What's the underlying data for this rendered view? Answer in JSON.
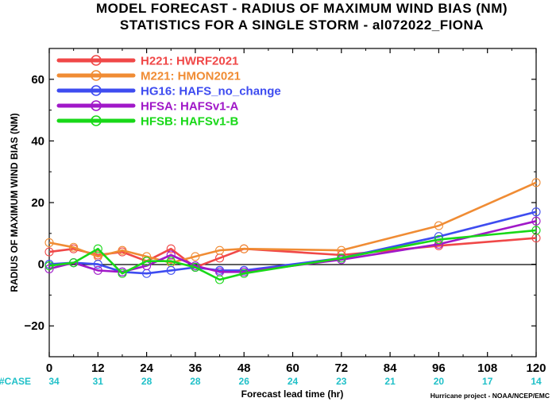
{
  "chart_data": {
    "type": "line",
    "title": "MODEL FORECAST - RADIUS OF MAXIMUM WIND BIAS (NM)",
    "subtitle": "STATISTICS FOR A SINGLE STORM - al072022_FIONA",
    "xlabel": "Forecast lead time (hr)",
    "ylabel": "RADIUS OF MAXIMUM WIND BIAS (NM)",
    "xlim": [
      0,
      120
    ],
    "ylim": [
      -30,
      70
    ],
    "x_ticks": [
      "0",
      "12",
      "24",
      "36",
      "48",
      "60",
      "72",
      "84",
      "96",
      "108",
      "120"
    ],
    "y_ticks": [
      "−20",
      "0",
      "20",
      "40",
      "60"
    ],
    "legend_position": "top-left",
    "case_label": "#CASE",
    "case_counts": [
      "34",
      "31",
      "28",
      "28",
      "26",
      "24",
      "23",
      "21",
      "20",
      "17",
      "14"
    ],
    "credit": "Hurricane project - NOAA/NCEP/EMC",
    "x": [
      0,
      6,
      12,
      18,
      24,
      30,
      36,
      42,
      48,
      72,
      96,
      120
    ],
    "series": [
      {
        "name": "H221:  HWRF2021",
        "color": "#f04848",
        "values": [
          4,
          5,
          3,
          4,
          1,
          5,
          -1,
          2,
          5,
          3,
          6,
          8.5
        ]
      },
      {
        "name": "M221:  HMON2021",
        "color": "#f08c34",
        "values": [
          7,
          5.5,
          2.5,
          4.5,
          2.5,
          0.5,
          2.5,
          4.5,
          5,
          4.5,
          12.5,
          26.5
        ]
      },
      {
        "name": "HG16:  HAFS_no_change",
        "color": "#3e4cf0",
        "values": [
          0,
          0.5,
          0,
          -2.5,
          -3,
          -2,
          -1,
          -2,
          -2,
          2,
          9,
          17
        ]
      },
      {
        "name": "HFSA:  HAFSv1-A",
        "color": "#a018c8",
        "values": [
          -1.5,
          0.5,
          -2,
          -2.5,
          -0.5,
          3,
          -0.5,
          -2.5,
          -2.5,
          1.5,
          6.5,
          14
        ]
      },
      {
        "name": "HFSB:  HAFSv1-B",
        "color": "#18d818",
        "values": [
          -0.5,
          0.5,
          5,
          -3,
          1,
          1,
          -1,
          -5,
          -3,
          2,
          8,
          11
        ]
      }
    ],
    "zero_line": true,
    "grid": false
  }
}
